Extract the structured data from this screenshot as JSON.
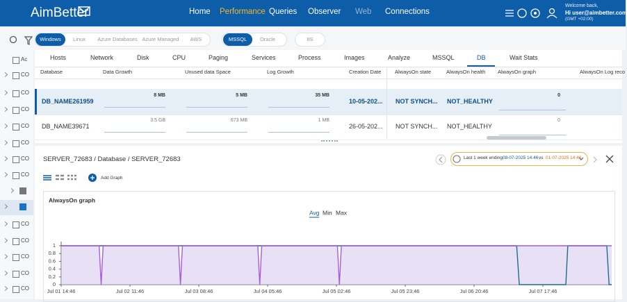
{
  "header": {
    "logo": "AimBetter",
    "nav": [
      "Home",
      "Performance",
      "Queries",
      "Observer",
      "Web",
      "Connections"
    ],
    "user": {
      "greeting": "Welcome back,",
      "name": "Hi user@aimbetter.com",
      "timezone": "(GMT +02:00)"
    }
  },
  "filters": {
    "platforms": [
      "Windows",
      "Linux",
      "Azure Databases",
      "Azure Managed",
      "AWS"
    ],
    "engines": [
      "MSSQL",
      "Oracle"
    ],
    "other": [
      "IIS"
    ]
  },
  "sidebar": {
    "top": [
      "Ac",
      "CO",
      "CO",
      "CO",
      "CO",
      "CO",
      "CO",
      "CO"
    ],
    "bottom": [
      "CO",
      "CO",
      "CO",
      "CO",
      "CO"
    ]
  },
  "tabs": [
    "Hosts",
    "Network",
    "Disk",
    "CPU",
    "Paging",
    "Services",
    "Process",
    "Images",
    "Analyze",
    "MSSQL",
    "DB",
    "Wait Stats"
  ],
  "table": {
    "columns": [
      "Database",
      "Data Growth",
      "Unused data Space",
      "Log Growth",
      "Creation Date",
      "AlwaysOn state",
      "AlwaysOn health",
      "AlwaysOn graph",
      "AlwaysOn Log reco"
    ],
    "rows": [
      [
        "DB_NAME261959",
        "8 MB",
        "5 MB",
        "35 MB",
        "10-05-202...",
        "NOT SYNCH...",
        "NOT_HEALTHY",
        "0"
      ],
      [
        "DB_NAME39671",
        "3.5 GB",
        "673 MB",
        "1 MB",
        "26-05-202...",
        "NOT SYNCH...",
        "NOT_HEALTHY",
        "0"
      ]
    ]
  },
  "detail": {
    "breadcrumb": "SERVER_72683 / Database / SERVER_72683",
    "range_label": "Last 1 week ending",
    "range_end": "08-07-2025 14:46",
    "range_vs": "vs",
    "range_start": "01-07-2025 14:46",
    "add_graph": "Add Graph",
    "stat_options": [
      "Avg",
      "Min",
      "Max"
    ]
  },
  "chart_data": {
    "type": "line",
    "title": "AlwaysOn graph",
    "x": [
      0,
      11.6,
      12.2,
      12.8,
      35.8,
      36.4,
      37.0,
      60.0,
      60.6,
      61.2,
      84.3,
      84.9,
      85.5,
      139.0,
      139.8,
      154.0,
      154.6,
      166.5,
      167.2,
      168
    ],
    "series": [
      {
        "color": "#1c6c8c",
        "values": [
          1,
          1,
          1,
          1,
          1,
          1,
          1,
          1,
          1,
          1,
          1,
          1,
          1,
          1,
          0,
          0,
          1,
          1,
          0,
          0
        ]
      },
      {
        "color": "#a65be0",
        "values": [
          1,
          1,
          0,
          1,
          1,
          0,
          1,
          1,
          0,
          1,
          1,
          0,
          1,
          1,
          1,
          1,
          1,
          1,
          1,
          1
        ]
      }
    ],
    "xlim": [
      0,
      168
    ],
    "ylim": [
      0,
      1
    ],
    "yticks": [
      0,
      0.2,
      0.4,
      0.6,
      0.8,
      1
    ],
    "xticks": [
      {
        "value": 0,
        "label": "Jul 01 14:46"
      },
      {
        "value": 21,
        "label": "Jul 02 11:46"
      },
      {
        "value": 42,
        "label": "Jul 03 08:46"
      },
      {
        "value": 63,
        "label": "Jul 04 05:46"
      },
      {
        "value": 84,
        "label": "Jul 05 02:46"
      },
      {
        "value": 105,
        "label": "Jul 05 23:46"
      },
      {
        "value": 126,
        "label": "Jul 06 20:46"
      },
      {
        "value": 147,
        "label": "Jul 07 17:46"
      }
    ],
    "fill": "#d9cdf0",
    "grid": false
  }
}
